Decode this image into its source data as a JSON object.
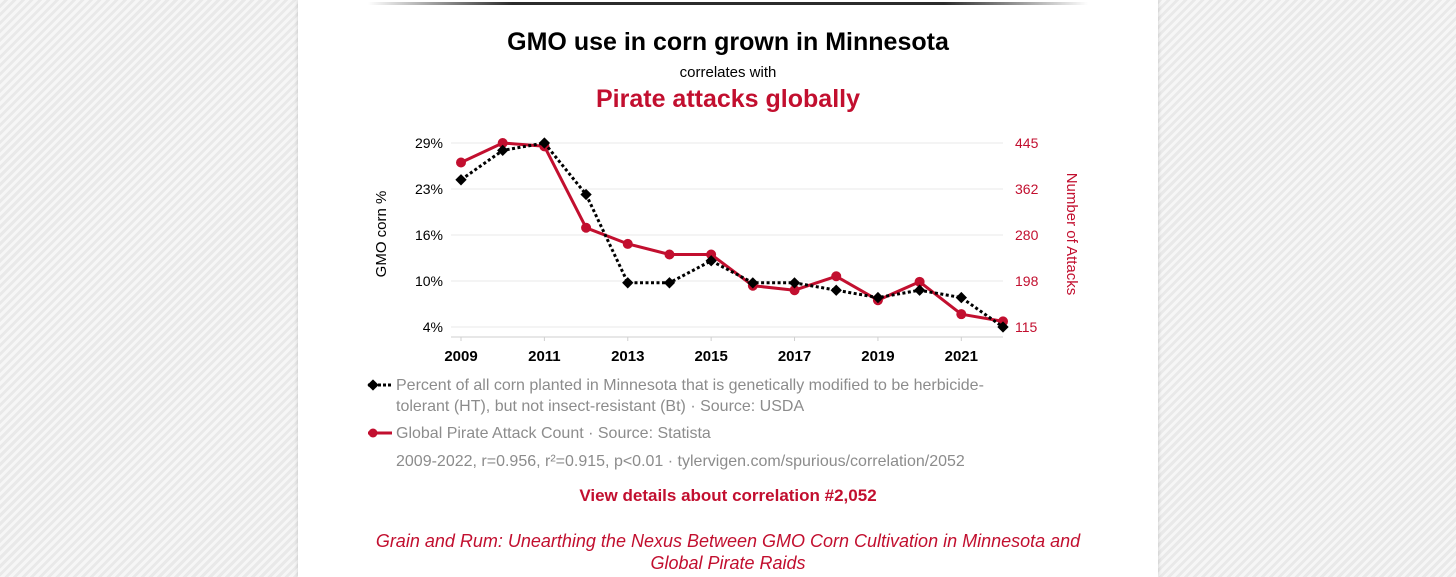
{
  "colors": {
    "series_a": "#000000",
    "series_b": "#c20f2f",
    "muted_text": "#8c8c8c",
    "grid": "#e8e8e8"
  },
  "header": {
    "title_a": "GMO use in corn grown in Minnesota",
    "connector": "correlates with",
    "title_b": "Pirate attacks globally"
  },
  "legend": {
    "series_a_text": "Percent of all corn planted in Minnesota that is genetically modified to be herbicide-tolerant (HT), but not insect-resistant (Bt) · Source: USDA",
    "series_b_text": "Global Pirate Attack Count · Source: Statista",
    "stats": "2009-2022, r=0.956, r²=0.915, p<0.01 · tylervigen.com/spurious/correlation/2052"
  },
  "links": {
    "details": "View details about correlation #2,052",
    "paper_title": "Grain and Rum: Unearthing the Nexus Between GMO Corn Cultivation in Minnesota and Global Pirate Raids"
  },
  "chart_data": {
    "type": "line",
    "x": [
      2009,
      2010,
      2011,
      2012,
      2013,
      2014,
      2015,
      2016,
      2017,
      2018,
      2019,
      2020,
      2021,
      2022
    ],
    "x_ticks": [
      "2009",
      "2011",
      "2013",
      "2015",
      "2017",
      "2019",
      "2021"
    ],
    "xlim": [
      2009,
      2022
    ],
    "grid": true,
    "series": [
      {
        "axis": "left",
        "marker": "diamond",
        "line_style": "dotted",
        "color": "#000000",
        "values": [
          24,
          28,
          29,
          22,
          10,
          10,
          13,
          10,
          10,
          9,
          8,
          9,
          8,
          4
        ]
      },
      {
        "axis": "right",
        "marker": "circle",
        "line_style": "solid",
        "color": "#c20f2f",
        "values": [
          410,
          445,
          439,
          293,
          264,
          245,
          245,
          189,
          181,
          206,
          163,
          196,
          138,
          125
        ]
      }
    ],
    "y_left": {
      "label": "GMO corn %",
      "ticks": [
        "29%",
        "23%",
        "16%",
        "10%",
        "4%"
      ],
      "ylim": [
        4,
        29
      ]
    },
    "y_right": {
      "label": "Number of Attacks",
      "ticks": [
        "445",
        "362",
        "280",
        "198",
        "115"
      ],
      "ylim": [
        115,
        445
      ]
    }
  }
}
